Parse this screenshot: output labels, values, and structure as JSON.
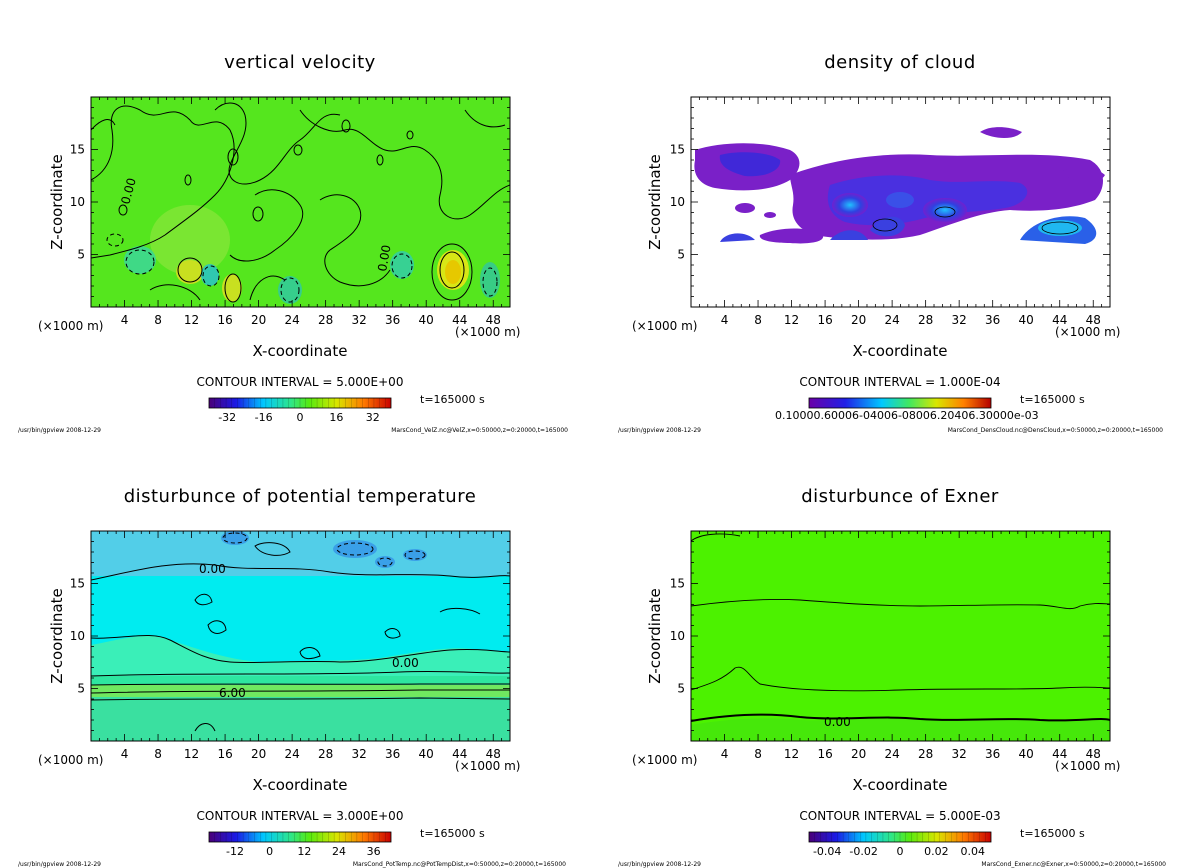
{
  "chart_data": [
    {
      "type": "heatmap",
      "id": "velz",
      "title": "vertical velocity",
      "xlabel": "X-coordinate",
      "ylabel": "Z-coordinate",
      "x_unit_label": "(×1000 m)",
      "xlim": [
        0,
        50
      ],
      "ylim": [
        0,
        20
      ],
      "xticks": [
        4,
        8,
        12,
        16,
        20,
        24,
        28,
        32,
        36,
        40,
        44,
        48
      ],
      "yticks": [
        5,
        10,
        15
      ],
      "contour_label": "0.00",
      "contour_interval": "CONTOUR INTERVAL = 5.000E+00",
      "time": "t=165000 s",
      "colorbar_ticks": [
        "-32",
        "-16",
        "0",
        "16",
        "32"
      ],
      "colorbar_range": [
        -40,
        40
      ],
      "footer_left": "/usr/bin/gpview  2008-12-29",
      "footer_right": "MarsCond_VelZ.nc@VelZ,x=0:50000,z=0:20000,t=165000",
      "background": "#55e61e"
    },
    {
      "type": "heatmap",
      "id": "denscloud",
      "title": "density of cloud",
      "xlabel": "X-coordinate",
      "ylabel": "Z-coordinate",
      "x_unit_label": "(×1000 m)",
      "xlim": [
        0,
        50
      ],
      "ylim": [
        0,
        20
      ],
      "xticks": [
        4,
        8,
        12,
        16,
        20,
        24,
        28,
        32,
        36,
        40,
        44,
        48
      ],
      "yticks": [
        5,
        10,
        15
      ],
      "contour_interval": "CONTOUR INTERVAL = 1.000E-04",
      "time": "t=165000 s",
      "colorbar_labels_text": "0.10000.60006-04006-08006.20406.30000e-03",
      "footer_left": "/usr/bin/gpview  2008-12-29",
      "footer_right": "MarsCond_DensCloud.nc@DensCloud,x=0:50000,z=0:20000,t=165000",
      "background": "#ffffff"
    },
    {
      "type": "heatmap",
      "id": "pottemp",
      "title": "disturbunce of potential temperature",
      "xlabel": "X-coordinate",
      "ylabel": "Z-coordinate",
      "x_unit_label": "(×1000 m)",
      "xlim": [
        0,
        50
      ],
      "ylim": [
        0,
        20
      ],
      "xticks": [
        4,
        8,
        12,
        16,
        20,
        24,
        28,
        32,
        36,
        40,
        44,
        48
      ],
      "yticks": [
        5,
        10,
        15
      ],
      "contour_labels": [
        "0.00",
        "0.00",
        "6.00"
      ],
      "contour_interval": "CONTOUR INTERVAL = 3.000E+00",
      "time": "t=165000 s",
      "colorbar_ticks": [
        "-12",
        "0",
        "12",
        "24",
        "36"
      ],
      "colorbar_range": [
        -21,
        42
      ],
      "footer_left": "/usr/bin/gpview  2008-12-29",
      "footer_right": "MarsCond_PotTemp.nc@PotTempDist,x=0:50000,z=0:20000,t=165000",
      "background": "#00ecf0"
    },
    {
      "type": "heatmap",
      "id": "exner",
      "title": "disturbunce of Exner",
      "xlabel": "X-coordinate",
      "ylabel": "Z-coordinate",
      "x_unit_label": "(×1000 m)",
      "xlim": [
        0,
        50
      ],
      "ylim": [
        0,
        20
      ],
      "xticks": [
        4,
        8,
        12,
        16,
        20,
        24,
        28,
        32,
        36,
        40,
        44,
        48
      ],
      "yticks": [
        5,
        10,
        15
      ],
      "contour_label": "0.00",
      "contour_interval": "CONTOUR INTERVAL = 5.000E-03",
      "time": "t=165000 s",
      "colorbar_ticks": [
        "-0.04",
        "-0.02",
        "0",
        "0.02",
        "0.04"
      ],
      "colorbar_range": [
        -0.05,
        0.05
      ],
      "footer_left": "/usr/bin/gpview  2008-12-29",
      "footer_right": "MarsCond_Exner.nc@Exner,x=0:50000,z=0:20000,t=165000",
      "background": "#4cf200"
    }
  ]
}
